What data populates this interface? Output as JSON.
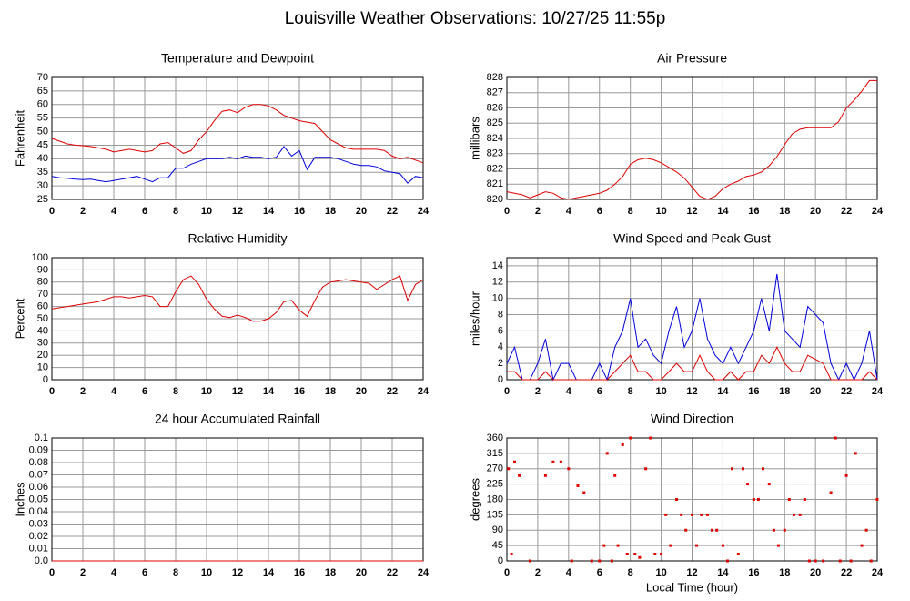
{
  "title": "Louisville Weather Observations: 10/27/25 11:55p",
  "chart_data": [
    {
      "type": "line",
      "title": "Temperature and Dewpoint",
      "ylabel": "Fahrenheit",
      "x": [
        0,
        0.5,
        1,
        1.5,
        2,
        2.5,
        3,
        3.5,
        4,
        4.5,
        5,
        5.5,
        6,
        6.5,
        7,
        7.5,
        8,
        8.5,
        9,
        9.5,
        10,
        10.5,
        11,
        11.5,
        12,
        12.5,
        13,
        13.5,
        14,
        14.5,
        15,
        15.5,
        16,
        16.5,
        17,
        17.5,
        18,
        18.5,
        19,
        19.5,
        20,
        20.5,
        21,
        21.5,
        22,
        22.5,
        23,
        23.5,
        24
      ],
      "series": [
        {
          "color": "#e00000",
          "values": [
            47.5,
            46.5,
            45.5,
            45,
            44.8,
            44.5,
            44,
            43.5,
            42.5,
            43,
            43.5,
            43,
            42.5,
            43,
            45.5,
            46,
            44,
            42,
            43,
            47,
            50,
            54,
            57.5,
            58,
            57,
            59,
            60,
            60,
            59.5,
            58,
            56,
            55,
            54,
            53.5,
            53,
            50,
            47,
            45.5,
            44,
            43.5,
            43.5,
            43.5,
            43.5,
            43,
            41,
            40,
            40.5,
            39.5,
            38.5
          ]
        },
        {
          "color": "#0000dd",
          "values": [
            33.5,
            33,
            32.8,
            32.5,
            32.3,
            32.5,
            32,
            31.5,
            32,
            32.5,
            33,
            33.5,
            32.5,
            31.5,
            33,
            33,
            36.5,
            36.5,
            38,
            39,
            40,
            40,
            40,
            40.5,
            40,
            41,
            40.5,
            40.5,
            40,
            40.5,
            44.5,
            41,
            43,
            36,
            40.5,
            40.5,
            40.5,
            40,
            39,
            38,
            37.5,
            37.5,
            37,
            35.5,
            35,
            34.5,
            31,
            33.5,
            33
          ]
        }
      ],
      "xlim": [
        0,
        24
      ],
      "xticks": [
        0,
        2,
        4,
        6,
        8,
        10,
        12,
        14,
        16,
        18,
        20,
        22,
        24
      ],
      "ylim": [
        25,
        70
      ],
      "yticks": [
        25,
        30,
        35,
        40,
        45,
        50,
        55,
        60,
        65,
        70
      ],
      "grid": true
    },
    {
      "type": "line",
      "title": "Air Pressure",
      "ylabel": "millibars",
      "x": [
        0,
        0.5,
        1,
        1.5,
        2,
        2.5,
        3,
        3.5,
        4,
        4.5,
        5,
        5.5,
        6,
        6.5,
        7,
        7.5,
        8,
        8.5,
        9,
        9.5,
        10,
        10.5,
        11,
        11.5,
        12,
        12.5,
        13,
        13.5,
        14,
        14.5,
        15,
        15.5,
        16,
        16.5,
        17,
        17.5,
        18,
        18.5,
        19,
        19.5,
        20,
        20.5,
        21,
        21.5,
        22,
        22.5,
        23,
        23.5,
        24
      ],
      "series": [
        {
          "color": "#e00000",
          "values": [
            820.5,
            820.4,
            820.3,
            820.1,
            820.3,
            820.5,
            820.4,
            820.1,
            820,
            820.1,
            820.2,
            820.3,
            820.4,
            820.6,
            821,
            821.5,
            822.3,
            822.6,
            822.7,
            822.6,
            822.4,
            822.1,
            821.8,
            821.4,
            820.8,
            820.2,
            820,
            820.2,
            820.7,
            821,
            821.2,
            821.5,
            821.6,
            821.8,
            822.2,
            822.8,
            823.6,
            824.3,
            824.6,
            824.7,
            824.7,
            824.7,
            824.7,
            825.1,
            826,
            826.5,
            827.1,
            827.8,
            827.8
          ]
        }
      ],
      "xlim": [
        0,
        24
      ],
      "xticks": [
        0,
        2,
        4,
        6,
        8,
        10,
        12,
        14,
        16,
        18,
        20,
        22,
        24
      ],
      "ylim": [
        820,
        828
      ],
      "yticks": [
        820,
        821,
        822,
        823,
        824,
        825,
        826,
        827,
        828
      ],
      "grid": true
    },
    {
      "type": "line",
      "title": "Relative Humidity",
      "ylabel": "Percent",
      "x": [
        0,
        0.5,
        1,
        1.5,
        2,
        2.5,
        3,
        3.5,
        4,
        4.5,
        5,
        5.5,
        6,
        6.5,
        7,
        7.5,
        8,
        8.5,
        9,
        9.5,
        10,
        10.5,
        11,
        11.5,
        12,
        12.5,
        13,
        13.5,
        14,
        14.5,
        15,
        15.5,
        16,
        16.5,
        17,
        17.5,
        18,
        18.5,
        19,
        19.5,
        20,
        20.5,
        21,
        21.5,
        22,
        22.5,
        23,
        23.5,
        24
      ],
      "series": [
        {
          "color": "#e00000",
          "values": [
            58,
            59,
            60,
            61,
            62,
            63,
            64,
            66,
            68,
            68,
            67,
            68,
            69,
            68,
            60,
            60,
            72,
            82,
            85,
            78,
            66,
            58,
            52,
            51,
            53,
            51,
            48,
            48,
            50,
            55,
            64,
            65,
            57,
            52,
            65,
            76,
            80,
            81,
            82,
            81,
            80,
            79,
            74,
            78,
            82,
            85,
            65,
            78,
            82
          ]
        }
      ],
      "xlim": [
        0,
        24
      ],
      "xticks": [
        0,
        2,
        4,
        6,
        8,
        10,
        12,
        14,
        16,
        18,
        20,
        22,
        24
      ],
      "ylim": [
        0,
        100
      ],
      "yticks": [
        0,
        10,
        20,
        30,
        40,
        50,
        60,
        70,
        80,
        90,
        100
      ],
      "grid": true
    },
    {
      "type": "line",
      "title": "Wind Speed and Peak Gust",
      "ylabel": "miles/hour",
      "x": [
        0,
        0.5,
        1,
        1.5,
        2,
        2.5,
        3,
        3.5,
        4,
        4.5,
        5,
        5.5,
        6,
        6.5,
        7,
        7.5,
        8,
        8.5,
        9,
        9.5,
        10,
        10.5,
        11,
        11.5,
        12,
        12.5,
        13,
        13.5,
        14,
        14.5,
        15,
        15.5,
        16,
        16.5,
        17,
        17.5,
        18,
        18.5,
        19,
        19.5,
        20,
        20.5,
        21,
        21.5,
        22,
        22.5,
        23,
        23.5,
        24
      ],
      "series": [
        {
          "color": "#0000dd",
          "values": [
            2,
            4,
            0,
            0,
            2,
            5,
            0,
            2,
            2,
            0,
            0,
            0,
            2,
            0,
            4,
            6,
            10,
            4,
            5,
            3,
            2,
            6,
            9,
            4,
            6,
            10,
            5,
            3,
            2,
            4,
            2,
            4,
            6,
            10,
            6,
            13,
            6,
            5,
            4,
            9,
            8,
            7,
            2,
            0,
            2,
            0,
            2,
            6,
            0
          ]
        },
        {
          "color": "#e00000",
          "values": [
            1,
            1,
            0,
            0,
            0,
            1,
            0,
            0,
            0,
            0,
            0,
            0,
            0,
            0,
            1,
            2,
            3,
            1,
            1,
            0,
            0,
            1,
            2,
            1,
            1,
            3,
            1,
            0,
            0,
            1,
            0,
            1,
            1,
            3,
            2,
            4,
            2,
            1,
            1,
            3,
            2.5,
            2,
            0,
            0,
            0,
            0,
            0,
            1,
            0
          ]
        }
      ],
      "xlim": [
        0,
        24
      ],
      "xticks": [
        0,
        2,
        4,
        6,
        8,
        10,
        12,
        14,
        16,
        18,
        20,
        22,
        24
      ],
      "ylim": [
        0,
        15
      ],
      "yticks": [
        0,
        2,
        4,
        6,
        8,
        10,
        12,
        14
      ],
      "grid": true
    },
    {
      "type": "line",
      "title": "24 hour Accumulated Rainfall",
      "ylabel": "Inches",
      "x": [
        0,
        24
      ],
      "series": [
        {
          "color": "#e00000",
          "values": [
            0,
            0
          ]
        }
      ],
      "xlim": [
        0,
        24
      ],
      "xticks": [
        0,
        2,
        4,
        6,
        8,
        10,
        12,
        14,
        16,
        18,
        20,
        22,
        24
      ],
      "ylim": [
        0,
        0.1
      ],
      "yticks": [
        {
          "value": 0,
          "label": "0.0"
        },
        0.01,
        0.02,
        0.03,
        0.04,
        0.05,
        0.06,
        0.07,
        0.08,
        0.09,
        0.1
      ],
      "grid": true
    },
    {
      "type": "scatter",
      "title": "Wind Direction",
      "ylabel": "degrees",
      "xlabel": "Local Time (hour)",
      "x": [
        0.1,
        0.3,
        0.5,
        0.8,
        1.5,
        2.5,
        3,
        3.5,
        4,
        4.2,
        4.6,
        5,
        5.5,
        6,
        6.3,
        6.5,
        6.8,
        7,
        7.2,
        7.5,
        7.8,
        8,
        8.3,
        8.6,
        9,
        9.3,
        9.6,
        10,
        10.3,
        10.6,
        11,
        11.3,
        11.6,
        12,
        12.3,
        12.6,
        13,
        13.3,
        13.6,
        14,
        14.3,
        14.6,
        15,
        15.3,
        15.6,
        16,
        16.3,
        16.6,
        17,
        17.3,
        17.6,
        18,
        18.3,
        18.6,
        19,
        19.3,
        19.6,
        20,
        20.5,
        21,
        21.3,
        21.6,
        22,
        22.3,
        22.6,
        23,
        23.3,
        23.6,
        24
      ],
      "series": [
        {
          "color": "#e00000",
          "values": [
            270,
            20,
            290,
            250,
            0,
            250,
            290,
            290,
            270,
            0,
            220,
            200,
            0,
            0,
            45,
            315,
            0,
            250,
            45,
            340,
            20,
            360,
            20,
            10,
            270,
            360,
            20,
            20,
            135,
            45,
            180,
            135,
            90,
            135,
            45,
            135,
            135,
            90,
            90,
            45,
            0,
            270,
            20,
            270,
            225,
            180,
            180,
            270,
            225,
            90,
            45,
            90,
            180,
            135,
            135,
            180,
            0,
            0,
            0,
            200,
            360,
            0,
            250,
            0,
            315,
            45,
            90,
            0,
            180
          ]
        }
      ],
      "xlim": [
        0,
        24
      ],
      "xticks": [
        0,
        2,
        4,
        6,
        8,
        10,
        12,
        14,
        16,
        18,
        20,
        22,
        24
      ],
      "ylim": [
        0,
        360
      ],
      "yticks": [
        0,
        45,
        90,
        135,
        180,
        225,
        270,
        315,
        360
      ],
      "grid": true
    }
  ]
}
